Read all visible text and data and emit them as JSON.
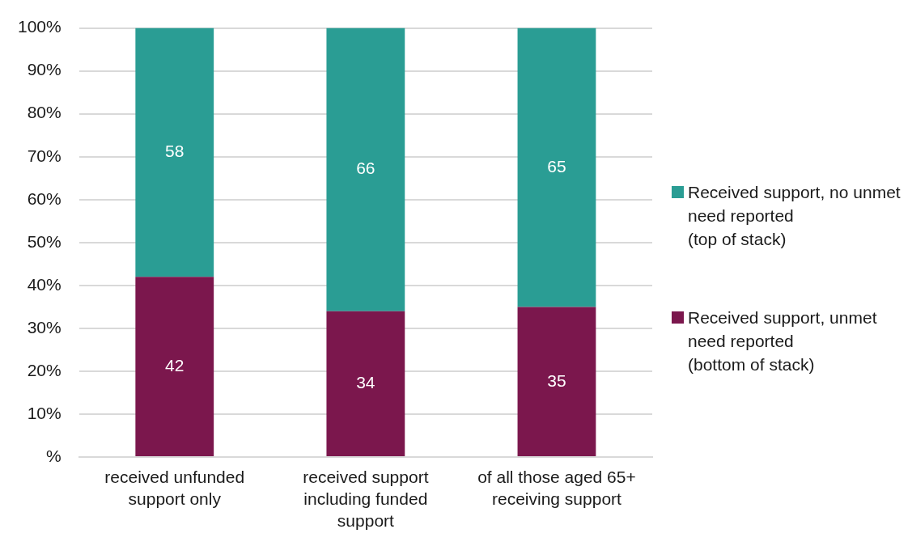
{
  "chart_data": {
    "type": "bar",
    "stacked": true,
    "categories": [
      "received unfunded support only",
      "received support including funded support",
      "of all those aged 65+ receiving support"
    ],
    "series": [
      {
        "name": "Received support, unmet need reported (bottom of stack)",
        "color": "#7b174d",
        "values": [
          42,
          34,
          35
        ]
      },
      {
        "name": "Received support, no unmet need reported (top of stack)",
        "color": "#2a9d94",
        "values": [
          58,
          66,
          65
        ]
      }
    ],
    "ylim": [
      0,
      100
    ],
    "yticks": [
      {
        "value": 0,
        "label": "%"
      },
      {
        "value": 10,
        "label": "10%"
      },
      {
        "value": 20,
        "label": "20%"
      },
      {
        "value": 30,
        "label": "30%"
      },
      {
        "value": 40,
        "label": "40%"
      },
      {
        "value": 50,
        "label": "50%"
      },
      {
        "value": 60,
        "label": "60%"
      },
      {
        "value": 70,
        "label": "70%"
      },
      {
        "value": 80,
        "label": "80%"
      },
      {
        "value": 90,
        "label": "90%"
      },
      {
        "value": 100,
        "label": "100%"
      }
    ],
    "grid": "y",
    "data_labels": true,
    "legend": "right"
  }
}
